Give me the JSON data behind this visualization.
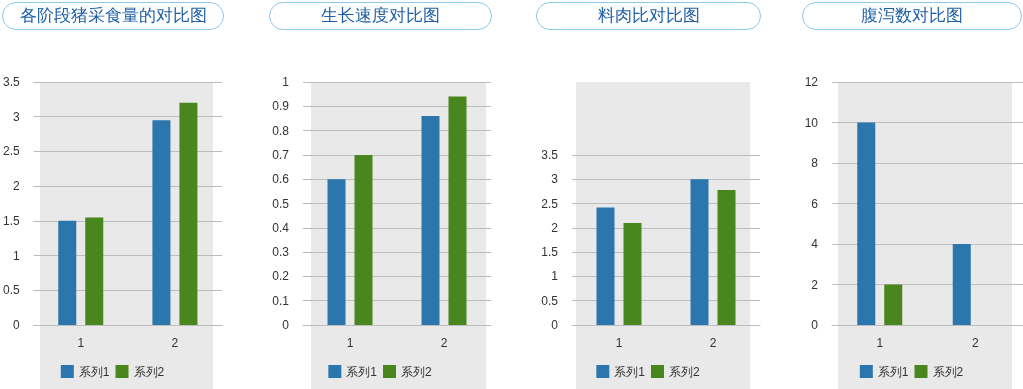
{
  "chart_data": [
    {
      "type": "bar",
      "title": "各阶段猪采食量的对比图",
      "categories": [
        "1",
        "2"
      ],
      "series": [
        {
          "name": "系列1",
          "color": "#2a76ad",
          "values": [
            1.5,
            2.95
          ]
        },
        {
          "name": "系列2",
          "color": "#4a861e",
          "values": [
            1.55,
            3.2
          ]
        }
      ],
      "ylim": [
        0,
        3.5
      ],
      "yticks": [
        0,
        0.5,
        1,
        1.5,
        2,
        2.5,
        3,
        3.5
      ],
      "grid": "y",
      "legend": "bottom"
    },
    {
      "type": "bar",
      "title": "生长速度对比图",
      "categories": [
        "1",
        "2"
      ],
      "series": [
        {
          "name": "系列1",
          "color": "#2a76ad",
          "values": [
            0.6,
            0.86
          ]
        },
        {
          "name": "系列2",
          "color": "#4a861e",
          "values": [
            0.7,
            0.94
          ]
        }
      ],
      "ylim": [
        0,
        1
      ],
      "yticks": [
        0,
        0.1,
        0.2,
        0.3,
        0.4,
        0.5,
        0.6,
        0.7,
        0.8,
        0.9,
        1
      ],
      "grid": "y",
      "legend": "bottom"
    },
    {
      "type": "bar",
      "title": "料肉比对比图",
      "categories": [
        "1",
        "2"
      ],
      "series": [
        {
          "name": "系列1",
          "color": "#2a76ad",
          "values": [
            2.42,
            3.0
          ]
        },
        {
          "name": "系列2",
          "color": "#4a861e",
          "values": [
            2.1,
            2.78
          ]
        }
      ],
      "ylim": [
        0,
        5
      ],
      "yticks": [
        0,
        0.5,
        1,
        1.5,
        2,
        2.5,
        3,
        3.5
      ],
      "grid": "y",
      "legend": "bottom"
    },
    {
      "type": "bar",
      "title": "腹泻数对比图",
      "categories": [
        "1",
        "2"
      ],
      "series": [
        {
          "name": "系列1",
          "color": "#2a76ad",
          "values": [
            10,
            4
          ]
        },
        {
          "name": "系列2",
          "color": "#4a861e",
          "values": [
            2,
            0
          ]
        }
      ],
      "ylim": [
        0,
        12
      ],
      "yticks": [
        0,
        2,
        4,
        6,
        8,
        10,
        12
      ],
      "grid": "y",
      "legend": "bottom"
    }
  ]
}
